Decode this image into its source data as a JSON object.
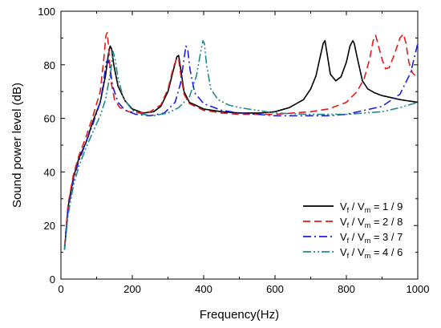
{
  "chart_data": {
    "type": "line",
    "title": "",
    "xlabel": "Frequency(Hz)",
    "ylabel": "Sound power level (dB)",
    "xlim": [
      0,
      1000
    ],
    "ylim": [
      0,
      100
    ],
    "xticks": [
      0,
      200,
      400,
      600,
      800,
      1000
    ],
    "yticks": [
      0,
      20,
      40,
      60,
      80,
      100
    ],
    "grid": false,
    "legend_position": "bottom-right",
    "series": [
      {
        "name": "Vf / Vm = 1 / 9",
        "legend": {
          "a": "V",
          "as": "f",
          "b": "V",
          "bs": "m",
          "ratio": "1 / 9"
        },
        "color": "#000000",
        "dash": "solid",
        "x": [
          10,
          20,
          35,
          50,
          70,
          90,
          110,
          125,
          133,
          138,
          142,
          148,
          160,
          180,
          200,
          230,
          260,
          280,
          300,
          315,
          325,
          330,
          335,
          345,
          360,
          400,
          450,
          500,
          560,
          600,
          640,
          680,
          700,
          715,
          725,
          735,
          740,
          745,
          755,
          770,
          785,
          800,
          810,
          818,
          822,
          830,
          845,
          860,
          880,
          900,
          950,
          1000
        ],
        "y": [
          11,
          27,
          38,
          45,
          51,
          59,
          66,
          76,
          84,
          87,
          86,
          80,
          72,
          66.5,
          63.5,
          62,
          62.5,
          64.5,
          70,
          78,
          83,
          83.5,
          79,
          70,
          66,
          63.5,
          62.5,
          62,
          62,
          62.5,
          64,
          67,
          71,
          76,
          82,
          88,
          89,
          85,
          76.5,
          74,
          75.5,
          81,
          87,
          89,
          88,
          83,
          74,
          71,
          69.5,
          68.5,
          67,
          66
        ]
      },
      {
        "name": "Vf / Vm = 2 / 8",
        "legend": {
          "a": "V",
          "as": "f",
          "b": "V",
          "bs": "m",
          "ratio": "2 / 8"
        },
        "color": "#e41a1c",
        "dash": "9,5",
        "x": [
          10,
          20,
          35,
          50,
          70,
          90,
          110,
          120,
          126,
          130,
          134,
          140,
          150,
          165,
          190,
          220,
          250,
          280,
          300,
          315,
          325,
          330,
          335,
          345,
          360,
          400,
          450,
          500,
          550,
          600,
          650,
          700,
          750,
          800,
          830,
          850,
          865,
          875,
          882,
          890,
          900,
          910,
          920,
          935,
          950,
          960,
          967,
          975,
          985,
          1000
        ],
        "y": [
          12,
          28,
          39,
          46,
          53,
          61,
          70,
          82,
          91,
          92,
          86,
          74,
          67,
          64,
          62.5,
          62,
          62.5,
          65,
          71,
          79,
          82.5,
          82,
          77,
          69,
          65.5,
          63,
          62,
          61.5,
          61.5,
          61.5,
          62,
          62.5,
          63.5,
          66,
          70,
          75,
          82,
          89,
          91,
          87,
          82,
          78.5,
          79,
          84,
          90,
          91.5,
          88,
          81,
          77,
          75
        ]
      },
      {
        "name": "Vf / Vm = 3 / 7",
        "legend": {
          "a": "V",
          "as": "f",
          "b": "V",
          "bs": "m",
          "ratio": "3 / 7"
        },
        "color": "#1c1ce4",
        "dash": "10,4,2,4",
        "x": [
          10,
          20,
          35,
          50,
          70,
          90,
          110,
          120,
          127,
          132,
          137,
          145,
          160,
          180,
          210,
          250,
          290,
          320,
          335,
          345,
          350,
          355,
          362,
          375,
          400,
          450,
          500,
          550,
          600,
          650,
          700,
          750,
          800,
          850,
          900,
          950,
          980,
          1000
        ],
        "y": [
          11,
          26,
          37,
          44,
          51,
          58,
          66,
          74,
          81,
          82,
          79,
          72,
          66,
          63,
          61.5,
          61,
          62,
          66,
          73,
          82,
          87,
          86,
          78,
          69.5,
          65.5,
          63,
          62,
          61.5,
          61,
          61,
          61,
          61,
          61.5,
          63,
          64.5,
          69,
          77,
          88
        ]
      },
      {
        "name": "Vf / Vm = 4 / 6",
        "legend": {
          "a": "V",
          "as": "f",
          "b": "V",
          "bs": "m",
          "ratio": "4 / 6"
        },
        "color": "#1f8a8a",
        "dash": "10,3,2,3,2,3",
        "x": [
          10,
          20,
          35,
          50,
          70,
          90,
          110,
          125,
          140,
          146,
          152,
          160,
          175,
          200,
          230,
          260,
          300,
          330,
          360,
          380,
          392,
          398,
          402,
          408,
          420,
          440,
          470,
          500,
          550,
          600,
          700,
          800,
          900,
          950,
          1000
        ],
        "y": [
          11,
          24,
          35,
          42,
          49,
          55,
          61,
          67,
          78,
          85,
          82,
          75,
          67.5,
          63,
          61.5,
          61,
          62,
          64,
          68,
          76,
          85,
          89,
          88,
          80,
          71,
          67,
          65,
          64,
          63,
          62,
          61.5,
          61.5,
          62.5,
          64,
          66
        ]
      }
    ]
  }
}
